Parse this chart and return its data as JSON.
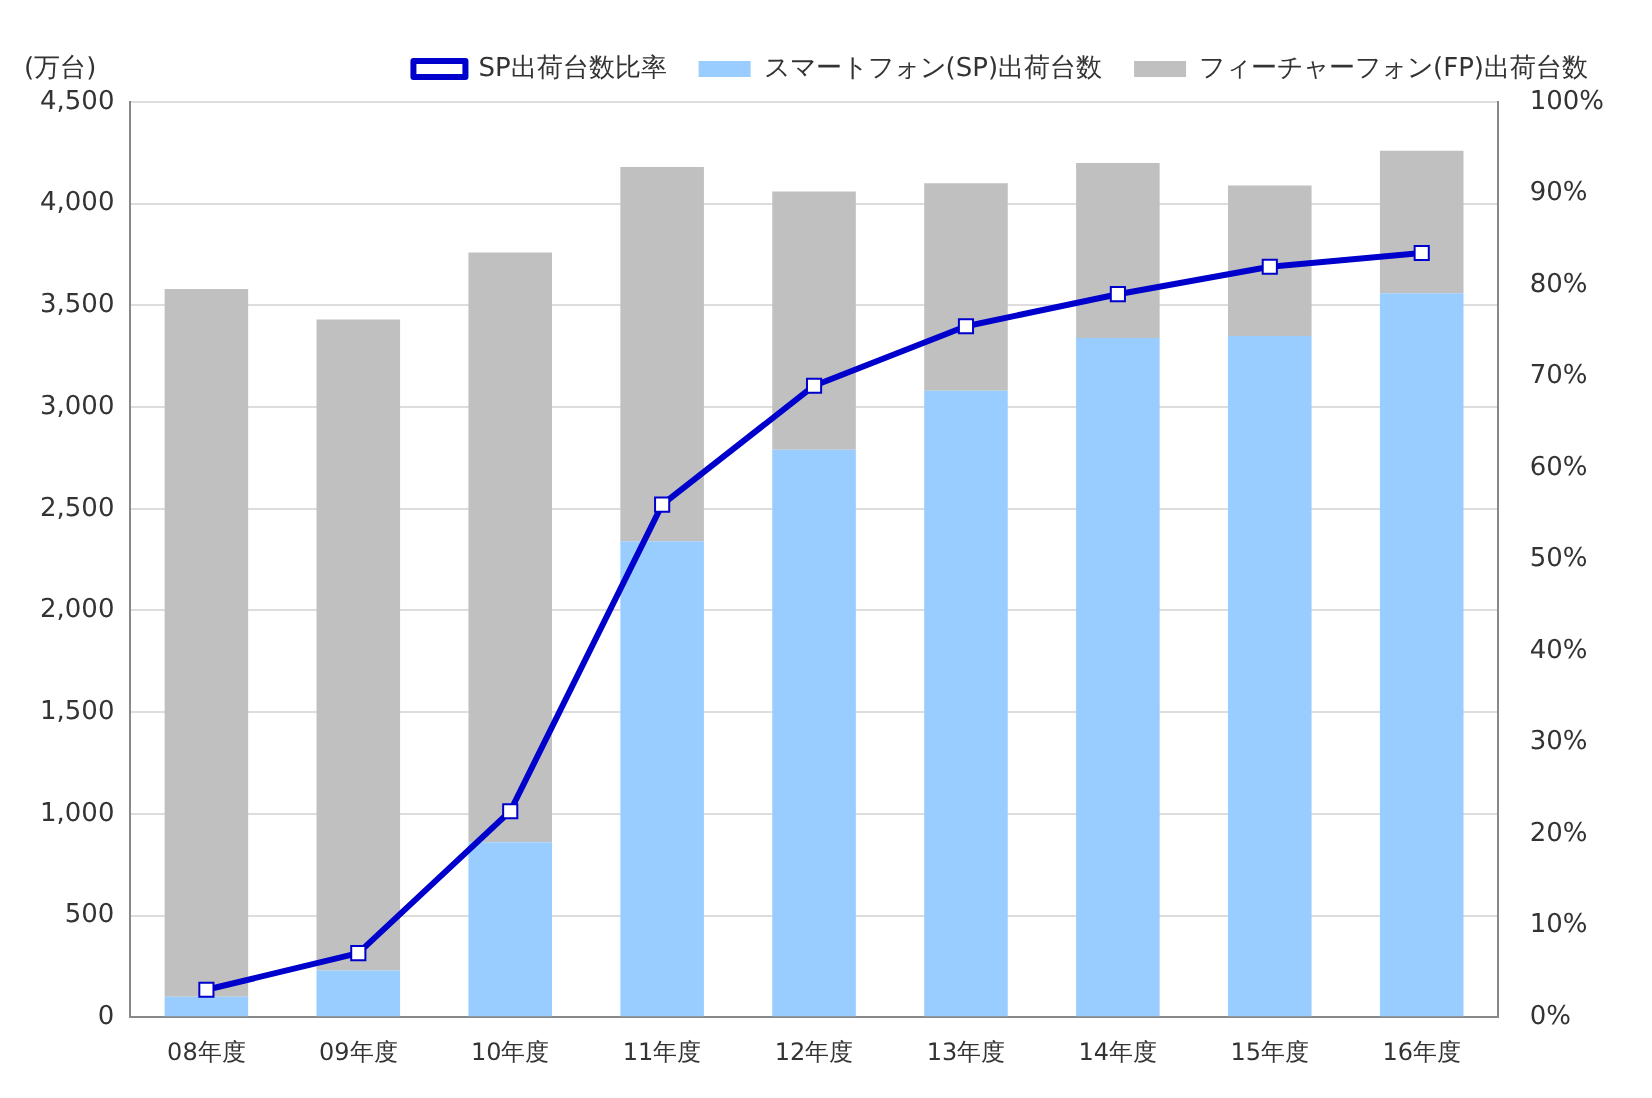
{
  "chart_data": {
    "type": "bar",
    "stacked": true,
    "ylabel": "(万台)",
    "categories": [
      "08年度",
      "09年度",
      "10年度",
      "11年度",
      "12年度",
      "13年度",
      "14年度",
      "15年度",
      "16年度"
    ],
    "series": [
      {
        "name": "スマートフォン(SP)出荷台数",
        "color": "#99ccff",
        "values": [
          100,
          230,
          860,
          2340,
          2790,
          3080,
          3340,
          3350,
          3560
        ]
      },
      {
        "name": "フィーチャーフォン(FP)出荷台数",
        "color": "#c0c0c0",
        "values": [
          3480,
          3200,
          2900,
          1840,
          1270,
          1020,
          860,
          740,
          700
        ]
      },
      {
        "name": "SP出荷台数比率",
        "type": "line",
        "axis": "y2",
        "color": "#0000cc",
        "marker": "square",
        "values": [
          3,
          7,
          22.5,
          56,
          69,
          75.5,
          79,
          82,
          83.5
        ]
      }
    ],
    "ylim": [
      0,
      4500
    ],
    "yticks": [
      {
        "value": 0,
        "label": "0"
      },
      {
        "value": 500,
        "label": "500"
      },
      {
        "value": 1000,
        "label": "1,000"
      },
      {
        "value": 1500,
        "label": "1,500"
      },
      {
        "value": 2000,
        "label": "2,000"
      },
      {
        "value": 2500,
        "label": "2,500"
      },
      {
        "value": 3000,
        "label": "3,000"
      },
      {
        "value": 3500,
        "label": "3,500"
      },
      {
        "value": 4000,
        "label": "4,000"
      },
      {
        "value": 4500,
        "label": "4,500"
      }
    ],
    "y2lim": [
      0,
      100
    ],
    "y2ticks": [
      {
        "value": 0,
        "label": "0%"
      },
      {
        "value": 10,
        "label": "10%"
      },
      {
        "value": 20,
        "label": "20%"
      },
      {
        "value": 30,
        "label": "30%"
      },
      {
        "value": 40,
        "label": "40%"
      },
      {
        "value": 50,
        "label": "50%"
      },
      {
        "value": 60,
        "label": "60%"
      },
      {
        "value": 70,
        "label": "70%"
      },
      {
        "value": 80,
        "label": "80%"
      },
      {
        "value": 90,
        "label": "90%"
      },
      {
        "value": 100,
        "label": "100%"
      }
    ],
    "grid": "y",
    "legend": "top"
  }
}
